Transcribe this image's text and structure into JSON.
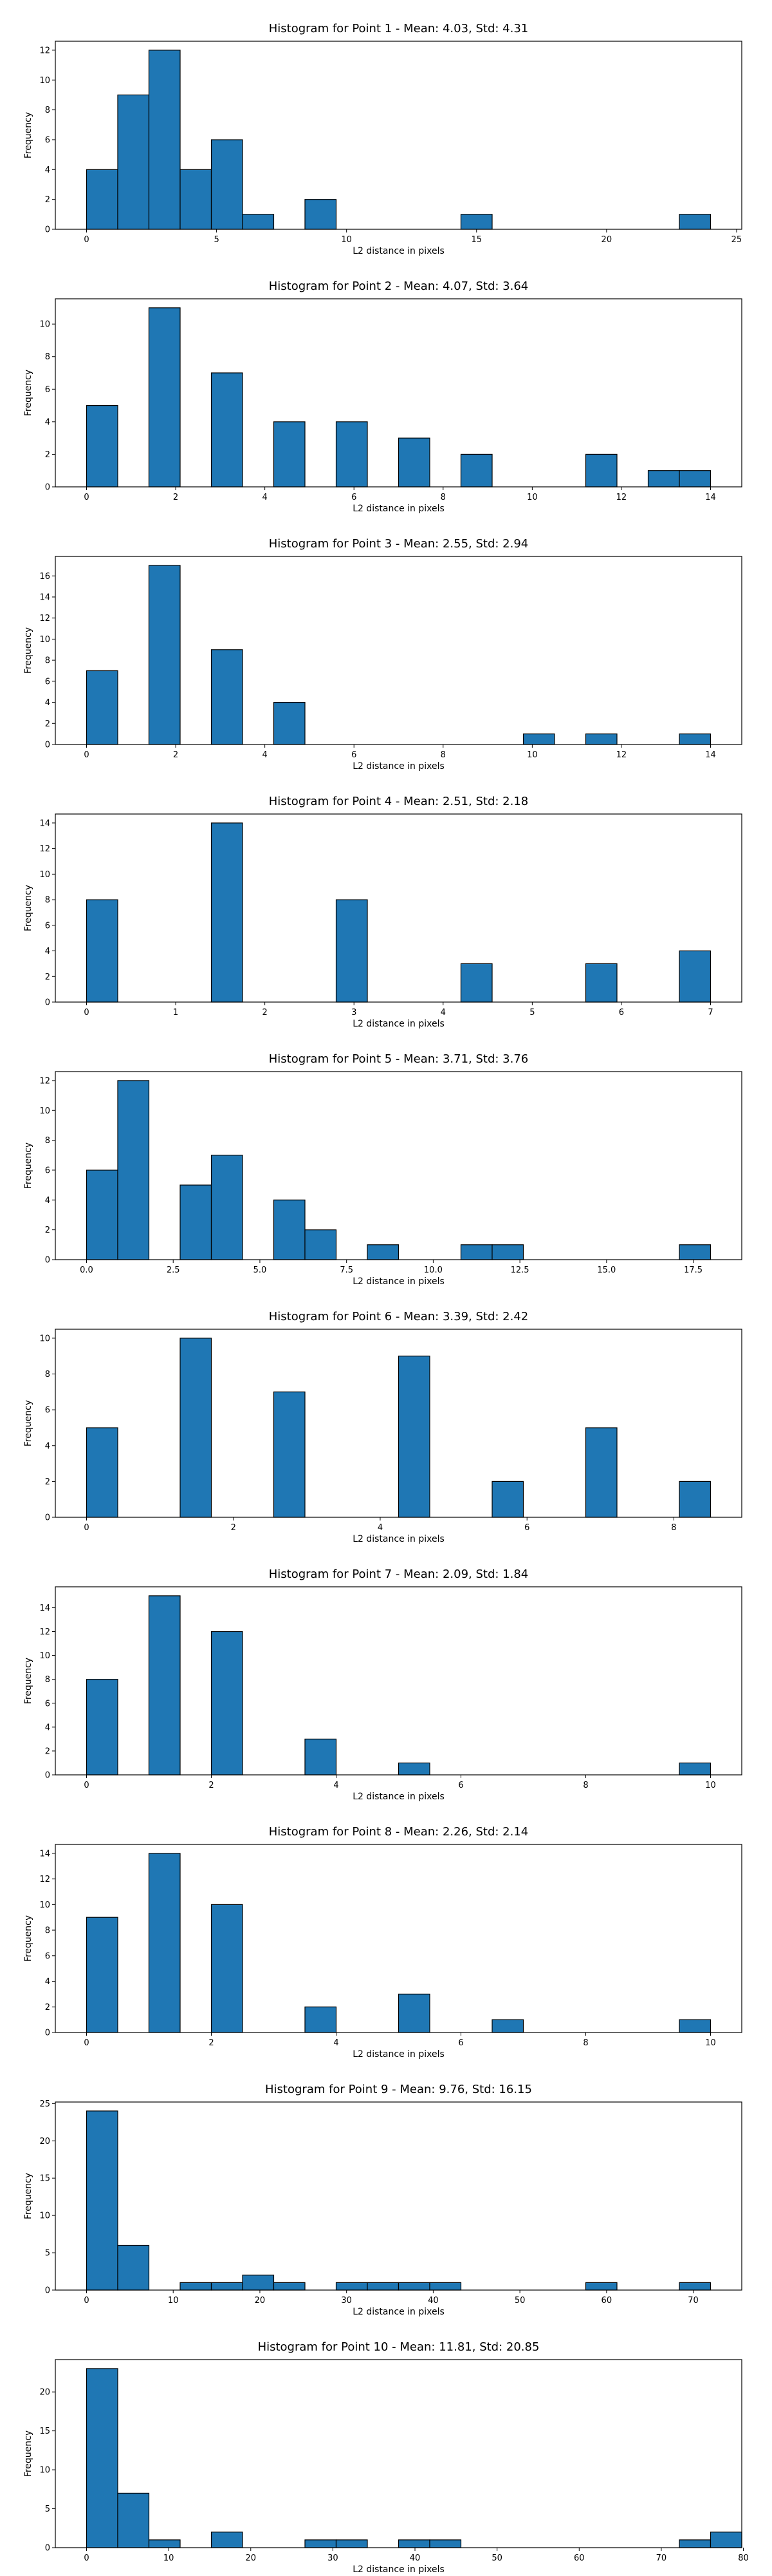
{
  "chart_data": [
    {
      "type": "bar",
      "title": "Histogram for Point 1 - Mean: 4.03, Std: 4.31",
      "xlabel": "L2 distance in pixels",
      "ylabel": "Frequency",
      "xlim": [
        -1.2,
        25.2
      ],
      "ylim": [
        0,
        12.6
      ],
      "xticks": [
        0,
        5,
        10,
        15,
        20,
        25
      ],
      "yticks": [
        0,
        2,
        4,
        6,
        8,
        10,
        12
      ],
      "grid": false,
      "bins": [
        {
          "x0": 0.0,
          "x1": 1.2,
          "count": 4
        },
        {
          "x0": 1.2,
          "x1": 2.4,
          "count": 9
        },
        {
          "x0": 2.4,
          "x1": 3.6,
          "count": 12
        },
        {
          "x0": 3.6,
          "x1": 4.8,
          "count": 4
        },
        {
          "x0": 4.8,
          "x1": 6.0,
          "count": 6
        },
        {
          "x0": 6.0,
          "x1": 7.2,
          "count": 1
        },
        {
          "x0": 8.4,
          "x1": 9.6,
          "count": 2
        },
        {
          "x0": 14.4,
          "x1": 15.6,
          "count": 1
        },
        {
          "x0": 22.8,
          "x1": 24.0,
          "count": 1
        }
      ]
    },
    {
      "type": "bar",
      "title": "Histogram for Point 2 - Mean: 4.07, Std: 3.64",
      "xlabel": "L2 distance in pixels",
      "ylabel": "Frequency",
      "xlim": [
        -0.7,
        14.7
      ],
      "ylim": [
        0,
        11.55
      ],
      "xticks": [
        0,
        2,
        4,
        6,
        8,
        10,
        12,
        14
      ],
      "yticks": [
        0,
        2,
        4,
        6,
        8,
        10
      ],
      "grid": false,
      "bins": [
        {
          "x0": 0.0,
          "x1": 0.7,
          "count": 5
        },
        {
          "x0": 1.4,
          "x1": 2.1,
          "count": 11
        },
        {
          "x0": 2.8,
          "x1": 3.5,
          "count": 7
        },
        {
          "x0": 4.2,
          "x1": 4.9,
          "count": 4
        },
        {
          "x0": 5.6,
          "x1": 6.3,
          "count": 4
        },
        {
          "x0": 7.0,
          "x1": 7.7,
          "count": 3
        },
        {
          "x0": 8.4,
          "x1": 9.1,
          "count": 2
        },
        {
          "x0": 11.2,
          "x1": 11.9,
          "count": 2
        },
        {
          "x0": 12.6,
          "x1": 13.3,
          "count": 1
        },
        {
          "x0": 13.3,
          "x1": 14.0,
          "count": 1
        }
      ]
    },
    {
      "type": "bar",
      "title": "Histogram for Point 3 - Mean: 2.55, Std: 2.94",
      "xlabel": "L2 distance in pixels",
      "ylabel": "Frequency",
      "xlim": [
        -0.7,
        14.7
      ],
      "ylim": [
        0,
        17.85
      ],
      "xticks": [
        0,
        2,
        4,
        6,
        8,
        10,
        12,
        14
      ],
      "yticks": [
        0,
        2,
        4,
        6,
        8,
        10,
        12,
        14,
        16
      ],
      "grid": false,
      "bins": [
        {
          "x0": 0.0,
          "x1": 0.7,
          "count": 7
        },
        {
          "x0": 1.4,
          "x1": 2.1,
          "count": 17
        },
        {
          "x0": 2.8,
          "x1": 3.5,
          "count": 9
        },
        {
          "x0": 4.2,
          "x1": 4.9,
          "count": 4
        },
        {
          "x0": 9.8,
          "x1": 10.5,
          "count": 1
        },
        {
          "x0": 11.2,
          "x1": 11.9,
          "count": 1
        },
        {
          "x0": 13.3,
          "x1": 14.0,
          "count": 1
        }
      ]
    },
    {
      "type": "bar",
      "title": "Histogram for Point 4 - Mean: 2.51, Std: 2.18",
      "xlabel": "L2 distance in pixels",
      "ylabel": "Frequency",
      "xlim": [
        -0.35,
        7.35
      ],
      "ylim": [
        0,
        14.7
      ],
      "xticks": [
        0,
        1,
        2,
        3,
        4,
        5,
        6,
        7
      ],
      "yticks": [
        0,
        2,
        4,
        6,
        8,
        10,
        12,
        14
      ],
      "grid": false,
      "bins": [
        {
          "x0": 0.0,
          "x1": 0.35,
          "count": 8
        },
        {
          "x0": 1.4,
          "x1": 1.75,
          "count": 14
        },
        {
          "x0": 2.8,
          "x1": 3.15,
          "count": 8
        },
        {
          "x0": 4.2,
          "x1": 4.55,
          "count": 3
        },
        {
          "x0": 5.6,
          "x1": 5.95,
          "count": 3
        },
        {
          "x0": 6.65,
          "x1": 7.0,
          "count": 4
        }
      ]
    },
    {
      "type": "bar",
      "title": "Histogram for Point 5 - Mean: 3.71, Std: 3.76",
      "xlabel": "L2 distance in pixels",
      "ylabel": "Frequency",
      "xlim": [
        -0.9,
        18.9
      ],
      "ylim": [
        0,
        12.6
      ],
      "xticks": [
        "0.0",
        "2.5",
        "5.0",
        "7.5",
        "10.0",
        "12.5",
        "15.0",
        "17.5"
      ],
      "yticks": [
        0,
        2,
        4,
        6,
        8,
        10,
        12
      ],
      "grid": false,
      "bins": [
        {
          "x0": 0.0,
          "x1": 0.9,
          "count": 6
        },
        {
          "x0": 0.9,
          "x1": 1.8,
          "count": 12
        },
        {
          "x0": 2.7,
          "x1": 3.6,
          "count": 5
        },
        {
          "x0": 3.6,
          "x1": 4.5,
          "count": 7
        },
        {
          "x0": 5.4,
          "x1": 6.3,
          "count": 4
        },
        {
          "x0": 6.3,
          "x1": 7.2,
          "count": 2
        },
        {
          "x0": 8.1,
          "x1": 9.0,
          "count": 1
        },
        {
          "x0": 10.8,
          "x1": 11.7,
          "count": 1
        },
        {
          "x0": 11.7,
          "x1": 12.6,
          "count": 1
        },
        {
          "x0": 17.1,
          "x1": 18.0,
          "count": 1
        }
      ]
    },
    {
      "type": "bar",
      "title": "Histogram for Point 6 - Mean: 3.39, Std: 2.42",
      "xlabel": "L2 distance in pixels",
      "ylabel": "Frequency",
      "xlim": [
        -0.425,
        8.925
      ],
      "ylim": [
        0,
        10.5
      ],
      "xticks": [
        0,
        2,
        4,
        6,
        8
      ],
      "yticks": [
        0,
        2,
        4,
        6,
        8,
        10
      ],
      "grid": false,
      "bins": [
        {
          "x0": 0.0,
          "x1": 0.425,
          "count": 5
        },
        {
          "x0": 1.275,
          "x1": 1.7,
          "count": 10
        },
        {
          "x0": 2.55,
          "x1": 2.975,
          "count": 7
        },
        {
          "x0": 4.25,
          "x1": 4.675,
          "count": 9
        },
        {
          "x0": 5.525,
          "x1": 5.95,
          "count": 2
        },
        {
          "x0": 6.8,
          "x1": 7.225,
          "count": 5
        },
        {
          "x0": 8.075,
          "x1": 8.5,
          "count": 2
        }
      ]
    },
    {
      "type": "bar",
      "title": "Histogram for Point 7 - Mean: 2.09, Std: 1.84",
      "xlabel": "L2 distance in pixels",
      "ylabel": "Frequency",
      "xlim": [
        -0.5,
        10.5
      ],
      "ylim": [
        0,
        15.75
      ],
      "xticks": [
        0,
        2,
        4,
        6,
        8,
        10
      ],
      "yticks": [
        0,
        2,
        4,
        6,
        8,
        10,
        12,
        14
      ],
      "grid": false,
      "bins": [
        {
          "x0": 0.0,
          "x1": 0.5,
          "count": 8
        },
        {
          "x0": 1.0,
          "x1": 1.5,
          "count": 15
        },
        {
          "x0": 2.0,
          "x1": 2.5,
          "count": 12
        },
        {
          "x0": 3.5,
          "x1": 4.0,
          "count": 3
        },
        {
          "x0": 5.0,
          "x1": 5.5,
          "count": 1
        },
        {
          "x0": 9.5,
          "x1": 10.0,
          "count": 1
        }
      ]
    },
    {
      "type": "bar",
      "title": "Histogram for Point 8 - Mean: 2.26, Std: 2.14",
      "xlabel": "L2 distance in pixels",
      "ylabel": "Frequency",
      "xlim": [
        -0.5,
        10.5
      ],
      "ylim": [
        0,
        14.7
      ],
      "xticks": [
        0,
        2,
        4,
        6,
        8,
        10
      ],
      "yticks": [
        0,
        2,
        4,
        6,
        8,
        10,
        12,
        14
      ],
      "grid": false,
      "bins": [
        {
          "x0": 0.0,
          "x1": 0.5,
          "count": 9
        },
        {
          "x0": 1.0,
          "x1": 1.5,
          "count": 14
        },
        {
          "x0": 2.0,
          "x1": 2.5,
          "count": 10
        },
        {
          "x0": 3.5,
          "x1": 4.0,
          "count": 2
        },
        {
          "x0": 5.0,
          "x1": 5.5,
          "count": 3
        },
        {
          "x0": 6.5,
          "x1": 7.0,
          "count": 1
        },
        {
          "x0": 9.5,
          "x1": 10.0,
          "count": 1
        }
      ]
    },
    {
      "type": "bar",
      "title": "Histogram for Point 9 - Mean: 9.76, Std: 16.15",
      "xlabel": "L2 distance in pixels",
      "ylabel": "Frequency",
      "xlim": [
        -3.6,
        75.6
      ],
      "ylim": [
        0,
        25.2
      ],
      "xticks": [
        0,
        10,
        20,
        30,
        40,
        50,
        60,
        70
      ],
      "yticks": [
        0,
        5,
        10,
        15,
        20,
        25
      ],
      "grid": false,
      "bins": [
        {
          "x0": 0.0,
          "x1": 3.6,
          "count": 24
        },
        {
          "x0": 3.6,
          "x1": 7.2,
          "count": 6
        },
        {
          "x0": 10.8,
          "x1": 14.4,
          "count": 1
        },
        {
          "x0": 14.4,
          "x1": 18.0,
          "count": 1
        },
        {
          "x0": 18.0,
          "x1": 21.6,
          "count": 2
        },
        {
          "x0": 21.6,
          "x1": 25.2,
          "count": 1
        },
        {
          "x0": 28.8,
          "x1": 32.4,
          "count": 1
        },
        {
          "x0": 32.4,
          "x1": 36.0,
          "count": 1
        },
        {
          "x0": 36.0,
          "x1": 39.6,
          "count": 1
        },
        {
          "x0": 39.6,
          "x1": 43.2,
          "count": 1
        },
        {
          "x0": 57.6,
          "x1": 61.2,
          "count": 1
        },
        {
          "x0": 68.4,
          "x1": 72.0,
          "count": 1
        }
      ]
    },
    {
      "type": "bar",
      "title": "Histogram for Point 10 - Mean: 11.81, Std: 20.85",
      "xlabel": "L2 distance in pixels",
      "ylabel": "Frequency",
      "xlim": [
        -3.8,
        79.8
      ],
      "ylim": [
        0,
        24.15
      ],
      "xticks": [
        0,
        10,
        20,
        30,
        40,
        50,
        60,
        70,
        80
      ],
      "yticks": [
        0,
        5,
        10,
        15,
        20
      ],
      "grid": false,
      "bins": [
        {
          "x0": 0.0,
          "x1": 3.8,
          "count": 23
        },
        {
          "x0": 3.8,
          "x1": 7.6,
          "count": 7
        },
        {
          "x0": 7.6,
          "x1": 11.4,
          "count": 1
        },
        {
          "x0": 15.2,
          "x1": 19.0,
          "count": 2
        },
        {
          "x0": 26.6,
          "x1": 30.4,
          "count": 1
        },
        {
          "x0": 30.4,
          "x1": 34.2,
          "count": 1
        },
        {
          "x0": 38.0,
          "x1": 41.8,
          "count": 1
        },
        {
          "x0": 41.8,
          "x1": 45.6,
          "count": 1
        },
        {
          "x0": 72.2,
          "x1": 76.0,
          "count": 1
        },
        {
          "x0": 76.0,
          "x1": 79.8,
          "count": 2
        }
      ]
    }
  ]
}
